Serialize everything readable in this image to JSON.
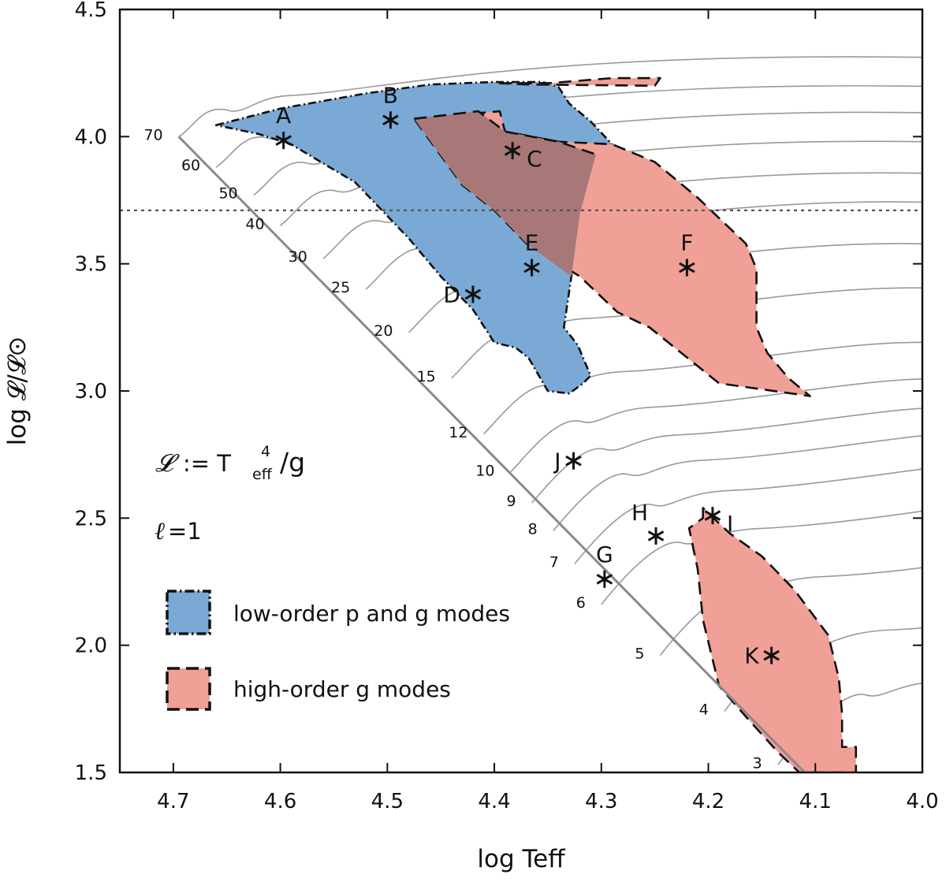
{
  "chart_data": {
    "type": "scatter",
    "xlabel": "log Teff",
    "ylabel": "log 𝓛/𝓛⊙",
    "xlim": [
      4.75,
      4.0
    ],
    "ylim": [
      1.5,
      4.5
    ],
    "x_ticks": [
      "4.7",
      "4.6",
      "4.5",
      "4.4",
      "4.3",
      "4.2",
      "4.1",
      "4.0"
    ],
    "y_ticks": [
      "1.5",
      "2.0",
      "2.5",
      "3.0",
      "3.5",
      "4.0",
      "4.5"
    ],
    "reference_line": {
      "style": "dotted",
      "y": 3.71
    },
    "annotations": {
      "definition_script": "𝓛",
      "definition_rest": " := T",
      "definition_sup": "4",
      "definition_sub": "eff",
      "definition_tail": "/g",
      "degree_prefix": "ℓ",
      "degree_value": "=1"
    },
    "legend": {
      "placement": "bottom-left",
      "entries": [
        {
          "label": "low-order p and g modes",
          "color": "#7aa9d6",
          "border": "dash-dot"
        },
        {
          "label": "high-order g modes",
          "color": "#f0a096",
          "border": "dashed"
        }
      ]
    },
    "zero_age_main_sequence": [
      [
        4.695,
        4.0
      ],
      [
        4.11,
        1.5
      ]
    ],
    "mass_tracks": [
      {
        "label": "70",
        "x": 4.695,
        "y": 4.0
      },
      {
        "label": "60",
        "x": 4.66,
        "y": 3.88
      },
      {
        "label": "50",
        "x": 4.625,
        "y": 3.77
      },
      {
        "label": "40",
        "x": 4.6,
        "y": 3.65
      },
      {
        "label": "30",
        "x": 4.56,
        "y": 3.52
      },
      {
        "label": "25",
        "x": 4.52,
        "y": 3.4
      },
      {
        "label": "20",
        "x": 4.48,
        "y": 3.23
      },
      {
        "label": "15",
        "x": 4.44,
        "y": 3.05
      },
      {
        "label": "12",
        "x": 4.41,
        "y": 2.83
      },
      {
        "label": "10",
        "x": 4.385,
        "y": 2.68
      },
      {
        "label": "9",
        "x": 4.365,
        "y": 2.56
      },
      {
        "label": "8",
        "x": 4.345,
        "y": 2.45
      },
      {
        "label": "7",
        "x": 4.325,
        "y": 2.32
      },
      {
        "label": "6",
        "x": 4.3,
        "y": 2.16
      },
      {
        "label": "5",
        "x": 4.245,
        "y": 1.96
      },
      {
        "label": "4",
        "x": 4.185,
        "y": 1.74
      },
      {
        "label": "3",
        "x": 4.135,
        "y": 1.53
      }
    ],
    "stars": [
      {
        "label": "A",
        "x": 4.597,
        "y": 3.985,
        "label_side": "top"
      },
      {
        "label": "B",
        "x": 4.497,
        "y": 4.065,
        "label_side": "top"
      },
      {
        "label": "C",
        "x": 4.383,
        "y": 3.945,
        "label_side": "right"
      },
      {
        "label": "D",
        "x": 4.42,
        "y": 3.38,
        "label_side": "left"
      },
      {
        "label": "E",
        "x": 4.365,
        "y": 3.485,
        "label_side": "top"
      },
      {
        "label": "F",
        "x": 4.22,
        "y": 3.485,
        "label_side": "top"
      },
      {
        "label": "G",
        "x": 4.297,
        "y": 2.26,
        "label_side": "top"
      },
      {
        "label": "H",
        "x": 4.249,
        "y": 2.43,
        "label_side": "top-left"
      },
      {
        "label": "I",
        "x": 4.196,
        "y": 2.51,
        "label_side": "right"
      },
      {
        "label": "J",
        "x": 4.326,
        "y": 2.725,
        "label_side": "left"
      },
      {
        "label": "K",
        "x": 4.141,
        "y": 1.96,
        "label_side": "left"
      }
    ],
    "regions": [
      {
        "name": "low-order p and g modes",
        "color": "#7aa9d6",
        "border": "dash-dot",
        "polygon": [
          [
            4.66,
            4.045
          ],
          [
            4.6,
            4.11
          ],
          [
            4.52,
            4.17
          ],
          [
            4.46,
            4.205
          ],
          [
            4.4,
            4.215
          ],
          [
            4.355,
            4.215
          ],
          [
            4.34,
            4.195
          ],
          [
            4.33,
            4.13
          ],
          [
            4.31,
            4.06
          ],
          [
            4.29,
            3.97
          ],
          [
            4.305,
            3.93
          ],
          [
            4.32,
            3.7
          ],
          [
            4.328,
            3.45
          ],
          [
            4.335,
            3.25
          ],
          [
            4.322,
            3.18
          ],
          [
            4.31,
            3.06
          ],
          [
            4.317,
            3.03
          ],
          [
            4.33,
            2.99
          ],
          [
            4.35,
            3.0
          ],
          [
            4.368,
            3.13
          ],
          [
            4.38,
            3.17
          ],
          [
            4.4,
            3.19
          ],
          [
            4.42,
            3.32
          ],
          [
            4.45,
            3.45
          ],
          [
            4.48,
            3.6
          ],
          [
            4.53,
            3.82
          ],
          [
            4.59,
            3.97
          ],
          [
            4.62,
            4.01
          ],
          [
            4.66,
            4.045
          ]
        ]
      },
      {
        "name": "high-order g modes",
        "color": "#f0a096",
        "border": "dashed",
        "polygon": [
          [
            4.475,
            4.07
          ],
          [
            4.395,
            4.1
          ],
          [
            4.39,
            4.02
          ],
          [
            4.34,
            3.98
          ],
          [
            4.29,
            3.97
          ],
          [
            4.25,
            3.9
          ],
          [
            4.21,
            3.76
          ],
          [
            4.165,
            3.58
          ],
          [
            4.155,
            3.48
          ],
          [
            4.155,
            3.25
          ],
          [
            4.145,
            3.15
          ],
          [
            4.125,
            3.05
          ],
          [
            4.105,
            2.98
          ],
          [
            4.19,
            3.03
          ],
          [
            4.255,
            3.25
          ],
          [
            4.285,
            3.31
          ],
          [
            4.32,
            3.45
          ],
          [
            4.37,
            3.58
          ],
          [
            4.4,
            3.71
          ],
          [
            4.43,
            3.81
          ],
          [
            4.475,
            4.07
          ]
        ]
      },
      {
        "name": "high-order g modes",
        "color": "#f0a096",
        "border": "dashed",
        "polygon": [
          [
            4.395,
            4.21
          ],
          [
            4.35,
            4.21
          ],
          [
            4.29,
            4.23
          ],
          [
            4.245,
            4.23
          ],
          [
            4.25,
            4.2
          ],
          [
            4.37,
            4.205
          ],
          [
            4.395,
            4.21
          ]
        ]
      },
      {
        "name": "high-order g modes",
        "color": "#f0a096",
        "border": "dashed",
        "polygon": [
          [
            4.205,
            2.5
          ],
          [
            4.205,
            2.54
          ],
          [
            4.2,
            2.52
          ],
          [
            4.18,
            2.44
          ],
          [
            4.15,
            2.35
          ],
          [
            4.12,
            2.22
          ],
          [
            4.088,
            2.04
          ],
          [
            4.078,
            1.87
          ],
          [
            4.075,
            1.73
          ],
          [
            4.075,
            1.6
          ],
          [
            4.062,
            1.6
          ],
          [
            4.062,
            1.5
          ],
          [
            4.115,
            1.5
          ],
          [
            4.135,
            1.58
          ],
          [
            4.165,
            1.72
          ],
          [
            4.19,
            1.84
          ],
          [
            4.205,
            2.1
          ],
          [
            4.21,
            2.3
          ],
          [
            4.218,
            2.46
          ],
          [
            4.205,
            2.5
          ]
        ]
      }
    ],
    "overlap_color": "#a87878",
    "overlap_region": [
      [
        4.475,
        4.07
      ],
      [
        4.415,
        4.1
      ],
      [
        4.39,
        4.02
      ],
      [
        4.34,
        3.98
      ],
      [
        4.305,
        3.93
      ],
      [
        4.32,
        3.7
      ],
      [
        4.328,
        3.45
      ],
      [
        4.37,
        3.58
      ],
      [
        4.4,
        3.71
      ],
      [
        4.43,
        3.81
      ],
      [
        4.475,
        4.07
      ]
    ]
  }
}
